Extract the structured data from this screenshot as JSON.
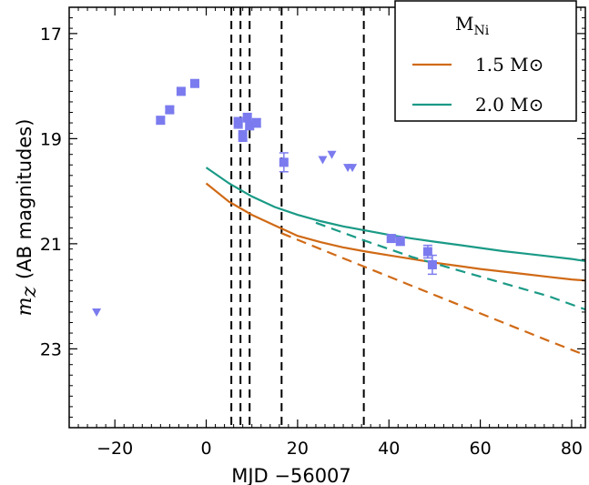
{
  "chart_data": {
    "type": "scatter",
    "xlabel": "MJD −56007",
    "ylabel_math": "m",
    "ylabel_math_sub": "z",
    "ylabel_text": "(AB magnitudes)",
    "xlim": [
      -30,
      83
    ],
    "ylim": [
      24.5,
      16.5
    ],
    "y_inverted": true,
    "grid": false,
    "x_ticks": [
      -20,
      0,
      20,
      40,
      60,
      80
    ],
    "y_ticks": [
      17,
      19,
      21,
      23
    ],
    "x_tick_labels": [
      "−20",
      "0",
      "20",
      "40",
      "60",
      "80"
    ],
    "y_tick_labels": [
      "17",
      "19",
      "21",
      "23"
    ],
    "detections": {
      "color": "#7b7bef",
      "points": [
        {
          "x": -10,
          "y": 18.65,
          "err": 0.06
        },
        {
          "x": -8,
          "y": 18.45,
          "err": 0.06
        },
        {
          "x": -5.5,
          "y": 18.1,
          "err": 0.06
        },
        {
          "x": -2.5,
          "y": 17.95,
          "err": 0.05
        },
        {
          "x": 7,
          "y": 18.7,
          "err": 0.1
        },
        {
          "x": 8,
          "y": 18.95,
          "err": 0.1
        },
        {
          "x": 9,
          "y": 18.6,
          "err": 0.08
        },
        {
          "x": 9.5,
          "y": 18.75,
          "err": 0.08
        },
        {
          "x": 11,
          "y": 18.7,
          "err": 0.08
        },
        {
          "x": 17,
          "y": 19.45,
          "err": 0.18
        },
        {
          "x": 40.5,
          "y": 20.9,
          "err": 0.07
        },
        {
          "x": 42.5,
          "y": 20.95,
          "err": 0.08
        },
        {
          "x": 48.5,
          "y": 21.15,
          "err": 0.12
        },
        {
          "x": 49.5,
          "y": 21.4,
          "err": 0.18
        }
      ]
    },
    "upper_limits": {
      "color": "#7b7bef",
      "points": [
        {
          "x": -24,
          "y": 22.3
        },
        {
          "x": 25.5,
          "y": 19.4
        },
        {
          "x": 27.5,
          "y": 19.3
        },
        {
          "x": 31,
          "y": 19.55
        },
        {
          "x": 32,
          "y": 19.55
        }
      ]
    },
    "vertical_lines": [
      5.5,
      7.5,
      9.5,
      16.5,
      34.5
    ],
    "series": [
      {
        "name": "1.5 M⊙",
        "color": "#d06a16",
        "style": "solid",
        "x": [
          0,
          5,
          10,
          15,
          20,
          25,
          30,
          35,
          40,
          45,
          50,
          55,
          60,
          65,
          70,
          75,
          80,
          83
        ],
        "y": [
          19.85,
          20.2,
          20.45,
          20.65,
          20.85,
          20.97,
          21.07,
          21.15,
          21.22,
          21.29,
          21.36,
          21.42,
          21.48,
          21.53,
          21.58,
          21.63,
          21.68,
          21.7
        ]
      },
      {
        "name": "2.0 M⊙",
        "color": "#1a9a86",
        "style": "solid",
        "x": [
          0,
          5,
          10,
          15,
          20,
          25,
          30,
          35,
          40,
          45,
          50,
          55,
          60,
          65,
          70,
          75,
          80,
          83
        ],
        "y": [
          19.55,
          19.85,
          20.1,
          20.3,
          20.45,
          20.57,
          20.67,
          20.75,
          20.83,
          20.9,
          20.96,
          21.02,
          21.08,
          21.14,
          21.19,
          21.24,
          21.29,
          21.33
        ]
      },
      {
        "color": "#d06a16",
        "style": "dashed",
        "x": [
          16.5,
          25,
          35,
          45,
          55,
          65,
          75,
          83
        ],
        "y": [
          20.8,
          21.1,
          21.45,
          21.8,
          22.15,
          22.5,
          22.85,
          23.12
        ]
      },
      {
        "color": "#1a9a86",
        "style": "dashed",
        "x": [
          24,
          35,
          45,
          55,
          65,
          75,
          83
        ],
        "y": [
          20.6,
          20.95,
          21.25,
          21.5,
          21.75,
          22.0,
          22.25
        ]
      }
    ],
    "legend": {
      "title": "M",
      "title_sub": "Ni",
      "placement": "top-right",
      "entries": [
        {
          "label": "1.5 M⊙",
          "color": "#d06a16"
        },
        {
          "label": "2.0 M⊙",
          "color": "#1a9a86"
        }
      ]
    }
  }
}
